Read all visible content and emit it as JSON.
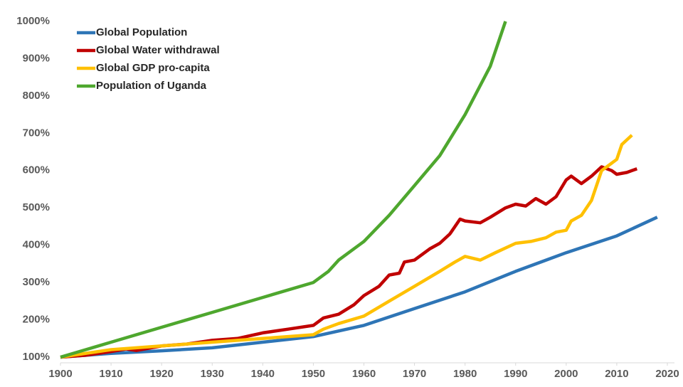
{
  "chart_data": {
    "type": "line",
    "xlim": [
      1900,
      2020
    ],
    "xticks": [
      1900,
      1910,
      1920,
      1930,
      1940,
      1950,
      1960,
      1970,
      1980,
      1990,
      2000,
      2010,
      2020
    ],
    "ylim": [
      100,
      1000
    ],
    "yticks": [
      {
        "value": 100,
        "label": "100%"
      },
      {
        "value": 200,
        "label": "200%"
      },
      {
        "value": 300,
        "label": "300%"
      },
      {
        "value": 400,
        "label": "400%"
      },
      {
        "value": 500,
        "label": "500%"
      },
      {
        "value": 600,
        "label": "600%"
      },
      {
        "value": 700,
        "label": "700%"
      },
      {
        "value": 800,
        "label": "800%"
      },
      {
        "value": 900,
        "label": "900%"
      },
      {
        "value": 1000,
        "label": "1000%"
      }
    ],
    "legend": "top-left",
    "series": [
      {
        "name": "Global Population",
        "color": "#2e75b6",
        "x": [
          1900,
          1910,
          1920,
          1930,
          1940,
          1950,
          1960,
          1970,
          1980,
          1990,
          2000,
          2010,
          2018
        ],
        "values": [
          100,
          110,
          117,
          125,
          140,
          155,
          185,
          230,
          275,
          330,
          380,
          425,
          475
        ]
      },
      {
        "name": "Global Water withdrawal",
        "color": "#c00000",
        "x": [
          1900,
          1905,
          1910,
          1913,
          1915,
          1920,
          1925,
          1930,
          1935,
          1940,
          1945,
          1950,
          1952,
          1955,
          1958,
          1960,
          1963,
          1965,
          1967,
          1968,
          1970,
          1973,
          1975,
          1977,
          1979,
          1980,
          1983,
          1985,
          1988,
          1990,
          1992,
          1994,
          1996,
          1998,
          2000,
          2001,
          2003,
          2005,
          2007,
          2009,
          2010,
          2012,
          2014
        ],
        "values": [
          100,
          105,
          115,
          122,
          118,
          130,
          135,
          145,
          150,
          165,
          175,
          185,
          205,
          215,
          240,
          265,
          290,
          320,
          325,
          355,
          360,
          390,
          405,
          430,
          470,
          465,
          460,
          475,
          500,
          510,
          505,
          525,
          510,
          530,
          575,
          585,
          565,
          585,
          610,
          600,
          590,
          595,
          605
        ]
      },
      {
        "name": "Global GDP pro-capita",
        "color": "#ffc000",
        "x": [
          1900,
          1910,
          1920,
          1930,
          1940,
          1950,
          1952,
          1955,
          1960,
          1965,
          1970,
          1975,
          1978,
          1980,
          1983,
          1986,
          1990,
          1993,
          1996,
          1998,
          2000,
          2001,
          2003,
          2005,
          2007,
          2009,
          2010,
          2011,
          2013
        ],
        "values": [
          100,
          120,
          130,
          140,
          150,
          160,
          175,
          190,
          210,
          250,
          290,
          330,
          355,
          370,
          360,
          380,
          405,
          410,
          420,
          435,
          440,
          465,
          480,
          520,
          600,
          620,
          630,
          670,
          695
        ]
      },
      {
        "name": "Population of Uganda",
        "color": "#4ea72e",
        "x": [
          1900,
          1910,
          1920,
          1930,
          1940,
          1950,
          1953,
          1955,
          1960,
          1965,
          1970,
          1975,
          1980,
          1985,
          1988
        ],
        "values": [
          100,
          140,
          180,
          220,
          260,
          300,
          330,
          360,
          410,
          480,
          560,
          640,
          750,
          880,
          1000
        ]
      }
    ]
  }
}
